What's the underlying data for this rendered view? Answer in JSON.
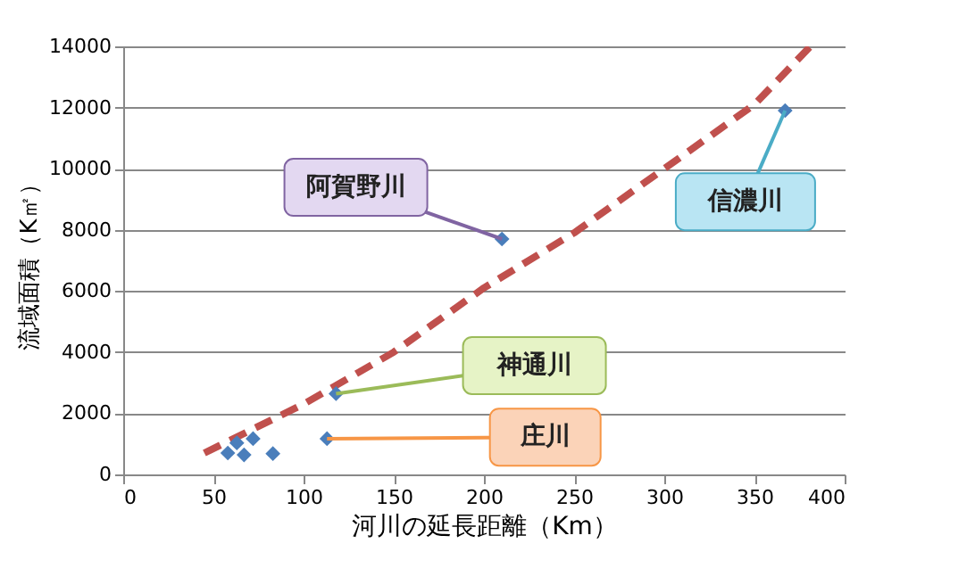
{
  "chart_data": {
    "type": "scatter",
    "xlabel": "河川の延長距離（Km）",
    "ylabel": "流域面積（K㎡）",
    "xlim": [
      0,
      400
    ],
    "xticks": [
      0,
      50,
      100,
      150,
      200,
      250,
      300,
      350,
      400
    ],
    "ylim": [
      0,
      14000
    ],
    "yticks": [
      0,
      2000,
      4000,
      6000,
      8000,
      10000,
      12000,
      14000
    ],
    "grid": "y",
    "marker": "diamond",
    "series": [
      {
        "color": "#4a7ebb",
        "x": [
          58,
          63,
          67,
          72,
          83,
          113,
          118,
          210,
          367
        ],
        "values": [
          700,
          1030,
          640,
          1170,
          680,
          1170,
          2640,
          7700,
          11900
        ]
      },
      {
        "type": "line",
        "color": "#c0504d",
        "line_style": "dashed",
        "marker": "none",
        "x": [
          45,
          100,
          150,
          200,
          250,
          300,
          350,
          381
        ],
        "values": [
          700,
          2300,
          4000,
          6100,
          7900,
          10000,
          12100,
          14000
        ]
      }
    ],
    "annotations": [
      {
        "text": "阿賀野川",
        "x": 210,
        "y": 7700
      },
      {
        "text": "信濃川",
        "x": 367,
        "y": 11900
      },
      {
        "text": "神通川",
        "x": 118,
        "y": 2640
      },
      {
        "text": "庄川",
        "x": 113,
        "y": 1170
      }
    ]
  }
}
